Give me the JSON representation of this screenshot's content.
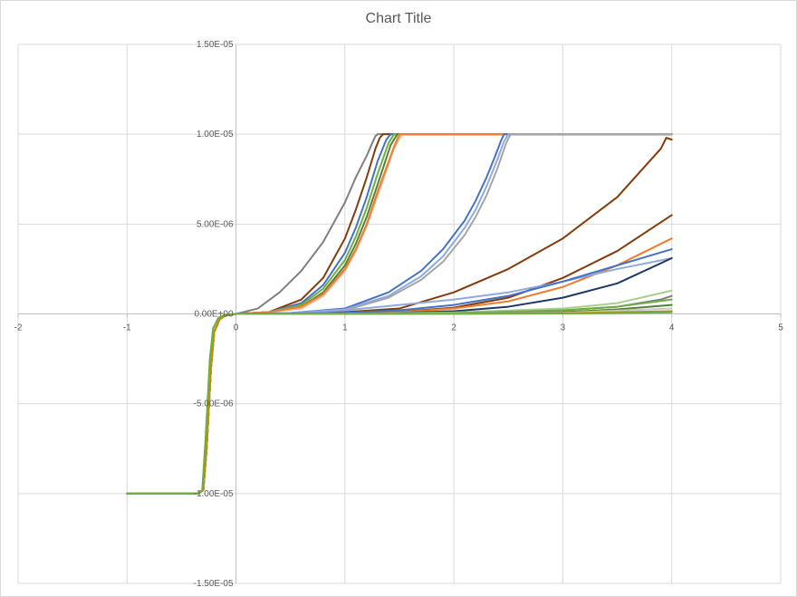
{
  "chart_data": {
    "type": "line",
    "title": "Chart Title",
    "xlabel": "",
    "ylabel": "",
    "xlim": [
      -2,
      5
    ],
    "ylim": [
      -1.5e-05,
      1.5e-05
    ],
    "x_ticks": [
      "-2",
      "-1",
      "0",
      "1",
      "2",
      "3",
      "4",
      "5"
    ],
    "y_ticks": [
      "-1.50E-05",
      "-1.00E-05",
      "-5.00E-06",
      "0.00E+00",
      "5.00E-06",
      "1.00E-05",
      "1.50E-05"
    ],
    "grid": true,
    "legend": "none",
    "series": [
      {
        "color": "#7f7f7f",
        "x": [
          -1,
          -0.35,
          -0.3,
          -0.27,
          -0.23,
          -0.2,
          -0.15,
          -0.1,
          0,
          0.2,
          0.4,
          0.6,
          0.8,
          1.0,
          1.1,
          1.2,
          1.25,
          1.28,
          1.3,
          4.0
        ],
        "y": [
          -1e-05,
          -1e-05,
          -9.8e-06,
          -7.5e-06,
          -3e-06,
          -1e-06,
          -3e-07,
          -1e-07,
          0,
          3e-07,
          1.2e-06,
          2.4e-06,
          4e-06,
          6.2e-06,
          7.6e-06,
          8.8e-06,
          9.5e-06,
          9.9e-06,
          1e-05,
          1e-05
        ]
      },
      {
        "color": "#843c0c",
        "x": [
          -1,
          -0.35,
          -0.3,
          -0.27,
          -0.23,
          -0.2,
          -0.15,
          -0.1,
          0,
          0.3,
          0.6,
          0.8,
          1.0,
          1.1,
          1.2,
          1.28,
          1.32,
          1.35,
          4.0
        ],
        "y": [
          -1e-05,
          -1e-05,
          -9.8e-06,
          -7.5e-06,
          -3e-06,
          -1e-06,
          -3e-07,
          -1e-07,
          0,
          1e-07,
          8e-07,
          2e-06,
          4.2e-06,
          5.8e-06,
          7.6e-06,
          9.2e-06,
          9.8e-06,
          1e-05,
          1e-05
        ]
      },
      {
        "color": "#4472c4",
        "x": [
          -1,
          -0.35,
          -0.3,
          -0.27,
          -0.23,
          -0.2,
          -0.15,
          -0.1,
          0,
          0.3,
          0.6,
          0.8,
          1.0,
          1.1,
          1.2,
          1.3,
          1.38,
          1.42,
          4.0
        ],
        "y": [
          -1e-05,
          -1e-05,
          -9.8e-06,
          -7.5e-06,
          -3e-06,
          -1e-06,
          -3e-07,
          -1e-07,
          0,
          1e-07,
          6e-07,
          1.6e-06,
          3.4e-06,
          4.8e-06,
          6.5e-06,
          8.5e-06,
          9.7e-06,
          1e-05,
          1e-05
        ]
      },
      {
        "color": "#70ad47",
        "x": [
          -1,
          -0.35,
          -0.3,
          -0.27,
          -0.23,
          -0.2,
          -0.15,
          -0.1,
          0,
          0.3,
          0.6,
          0.8,
          1.0,
          1.1,
          1.2,
          1.3,
          1.4,
          1.45,
          4.0
        ],
        "y": [
          -1e-05,
          -1e-05,
          -9.8e-06,
          -7.5e-06,
          -3e-06,
          -1e-06,
          -3e-07,
          -1e-07,
          0,
          1e-07,
          5e-07,
          1.4e-06,
          3e-06,
          4.3e-06,
          5.9e-06,
          7.8e-06,
          9.5e-06,
          1e-05,
          1e-05
        ]
      },
      {
        "color": "#548235",
        "x": [
          -1,
          -0.35,
          -0.3,
          -0.27,
          -0.23,
          -0.2,
          -0.15,
          -0.1,
          0,
          0.3,
          0.6,
          0.8,
          1.0,
          1.1,
          1.2,
          1.3,
          1.42,
          1.48,
          4.0
        ],
        "y": [
          -1e-05,
          -1e-05,
          -9.8e-06,
          -7.5e-06,
          -3e-06,
          -1e-06,
          -3e-07,
          -1e-07,
          0,
          1e-07,
          4e-07,
          1.2e-06,
          2.7e-06,
          3.9e-06,
          5.4e-06,
          7.2e-06,
          9.4e-06,
          1e-05,
          1e-05
        ]
      },
      {
        "color": "#f4b183",
        "x": [
          -1,
          -0.35,
          -0.3,
          -0.27,
          -0.23,
          -0.2,
          -0.15,
          -0.1,
          0,
          0.3,
          0.6,
          0.8,
          1.0,
          1.1,
          1.2,
          1.3,
          1.45,
          1.52,
          4.0
        ],
        "y": [
          -1e-05,
          -1e-05,
          -9.8e-06,
          -7.5e-06,
          -3e-06,
          -1e-06,
          -3e-07,
          -1e-07,
          0,
          1e-07,
          3e-07,
          1e-06,
          2.4e-06,
          3.5e-06,
          4.9e-06,
          6.6e-06,
          9.2e-06,
          1e-05,
          1e-05
        ]
      },
      {
        "color": "#ed7d31",
        "x": [
          -1,
          -0.35,
          -0.3,
          -0.27,
          -0.23,
          -0.2,
          -0.15,
          -0.1,
          0,
          0.3,
          0.6,
          0.8,
          1.0,
          1.1,
          1.2,
          1.3,
          1.45,
          1.5,
          4.0
        ],
        "y": [
          -1e-05,
          -1e-05,
          -9.8e-06,
          -7.5e-06,
          -3e-06,
          -1e-06,
          -3e-07,
          -1e-07,
          0,
          1e-07,
          4e-07,
          1.1e-06,
          2.5e-06,
          3.6e-06,
          5e-06,
          6.8e-06,
          9.3e-06,
          1e-05,
          1e-05
        ]
      },
      {
        "color": "#4472c4",
        "x": [
          -1,
          -0.35,
          -0.3,
          -0.27,
          -0.23,
          -0.2,
          -0.15,
          -0.1,
          0,
          0.5,
          1.0,
          1.4,
          1.7,
          1.9,
          2.1,
          2.2,
          2.3,
          2.38,
          2.43,
          2.46,
          4.0
        ],
        "y": [
          -1e-05,
          -1e-05,
          -9.8e-06,
          -7.5e-06,
          -3e-06,
          -1e-06,
          -3e-07,
          -1e-07,
          0,
          5e-08,
          3e-07,
          1.2e-06,
          2.4e-06,
          3.6e-06,
          5.2e-06,
          6.3e-06,
          7.6e-06,
          8.8e-06,
          9.6e-06,
          1e-05,
          1e-05
        ]
      },
      {
        "color": "#8faadc",
        "x": [
          -1,
          -0.35,
          -0.3,
          -0.27,
          -0.23,
          -0.2,
          -0.15,
          -0.1,
          0,
          0.5,
          1.0,
          1.4,
          1.7,
          1.9,
          2.1,
          2.2,
          2.3,
          2.4,
          2.46,
          2.5,
          4.0
        ],
        "y": [
          -1e-05,
          -1e-05,
          -9.8e-06,
          -7.5e-06,
          -3e-06,
          -1e-06,
          -3e-07,
          -1e-07,
          0,
          5e-08,
          2.5e-07,
          1e-06,
          2.1e-06,
          3.2e-06,
          4.8e-06,
          5.8e-06,
          7.1e-06,
          8.6e-06,
          9.6e-06,
          1e-05,
          1e-05
        ]
      },
      {
        "color": "#a5a5a5",
        "x": [
          -1,
          -0.35,
          -0.3,
          -0.27,
          -0.23,
          -0.2,
          -0.15,
          -0.1,
          0,
          0.5,
          1.0,
          1.4,
          1.7,
          1.9,
          2.1,
          2.2,
          2.3,
          2.4,
          2.48,
          2.52,
          4.0
        ],
        "y": [
          -1e-05,
          -1e-05,
          -9.8e-06,
          -7.5e-06,
          -3e-06,
          -1e-06,
          -3e-07,
          -1e-07,
          0,
          4e-08,
          2e-07,
          9e-07,
          1.9e-06,
          2.9e-06,
          4.4e-06,
          5.4e-06,
          6.6e-06,
          8.1e-06,
          9.5e-06,
          1e-05,
          1e-05
        ]
      },
      {
        "color": "#843c0c",
        "x": [
          -1,
          -0.35,
          -0.3,
          -0.27,
          -0.23,
          -0.2,
          -0.15,
          -0.1,
          0,
          0.5,
          1.0,
          1.5,
          2.0,
          2.5,
          3.0,
          3.5,
          3.9,
          3.95,
          4.0
        ],
        "y": [
          -1e-05,
          -1e-05,
          -9.8e-06,
          -7.5e-06,
          -3e-06,
          -1e-06,
          -3e-07,
          -1e-07,
          0,
          2e-08,
          1e-07,
          3e-07,
          1.2e-06,
          2.5e-06,
          4.2e-06,
          6.5e-06,
          9.2e-06,
          9.8e-06,
          9.7e-06
        ]
      },
      {
        "color": "#843c0c",
        "x": [
          -1,
          -0.35,
          -0.3,
          -0.27,
          -0.23,
          -0.2,
          -0.15,
          -0.1,
          0,
          0.5,
          1.0,
          1.5,
          2.0,
          2.5,
          3.0,
          3.5,
          4.0
        ],
        "y": [
          -1e-05,
          -1e-05,
          -9.8e-06,
          -7.5e-06,
          -3e-06,
          -1e-06,
          -3e-07,
          -1e-07,
          0,
          1e-08,
          4e-08,
          1.2e-07,
          3.5e-07,
          9e-07,
          2e-06,
          3.5e-06,
          5.5e-06
        ]
      },
      {
        "color": "#ed7d31",
        "x": [
          -1,
          -0.35,
          -0.3,
          -0.27,
          -0.23,
          -0.2,
          -0.15,
          -0.1,
          0,
          1.0,
          1.5,
          2.0,
          2.5,
          3.0,
          3.5,
          4.0
        ],
        "y": [
          -1e-05,
          -1e-05,
          -9.8e-06,
          -7.5e-06,
          -3e-06,
          -1e-06,
          -3e-07,
          -1e-07,
          0,
          3e-08,
          1e-07,
          3e-07,
          7e-07,
          1.5e-06,
          2.7e-06,
          4.2e-06
        ]
      },
      {
        "color": "#8faadc",
        "x": [
          -1,
          -0.35,
          -0.3,
          -0.27,
          -0.23,
          -0.2,
          -0.15,
          -0.1,
          0,
          0.5,
          1.0,
          1.5,
          2.0,
          2.5,
          3.0,
          3.5,
          4.0
        ],
        "y": [
          -1e-05,
          -1e-05,
          -9.8e-06,
          -7.5e-06,
          -3e-06,
          -1e-06,
          -3e-07,
          -1e-07,
          0,
          5e-08,
          2e-07,
          5e-07,
          8e-07,
          1.2e-06,
          1.8e-06,
          2.5e-06,
          3.1e-06
        ]
      },
      {
        "color": "#4472c4",
        "x": [
          -1,
          -0.35,
          -0.3,
          -0.27,
          -0.23,
          -0.2,
          -0.15,
          -0.1,
          0,
          1.0,
          1.5,
          2.0,
          2.5,
          3.0,
          3.5,
          4.0
        ],
        "y": [
          -1e-05,
          -1e-05,
          -9.8e-06,
          -7.5e-06,
          -3e-06,
          -1e-06,
          -3e-07,
          -1e-07,
          0,
          6e-08,
          2e-07,
          5e-07,
          1e-06,
          1.8e-06,
          2.7e-06,
          3.6e-06
        ]
      },
      {
        "color": "#1f3864",
        "x": [
          -1,
          -0.35,
          -0.3,
          -0.27,
          -0.23,
          -0.2,
          -0.15,
          -0.1,
          0,
          1.0,
          1.5,
          2.0,
          2.5,
          3.0,
          3.5,
          4.0
        ],
        "y": [
          -1e-05,
          -1e-05,
          -9.8e-06,
          -7.5e-06,
          -3e-06,
          -1e-06,
          -3e-07,
          -1e-07,
          0,
          2e-08,
          6e-08,
          1.5e-07,
          4e-07,
          9e-07,
          1.7e-06,
          3.1e-06
        ]
      },
      {
        "color": "#808080",
        "x": [
          -1,
          -0.35,
          -0.3,
          -0.27,
          -0.23,
          -0.2,
          -0.15,
          -0.1,
          0,
          1.0,
          2.0,
          3.0,
          3.5,
          3.9,
          4.0
        ],
        "y": [
          -1e-05,
          -1e-05,
          -9.8e-06,
          -7.5e-06,
          -3e-06,
          -1e-06,
          -3e-07,
          -1e-07,
          0,
          1e-08,
          5e-08,
          2e-07,
          4e-07,
          8e-07,
          1e-06
        ]
      },
      {
        "color": "#a9d18e",
        "x": [
          -1,
          -0.35,
          -0.3,
          -0.27,
          -0.23,
          -0.2,
          -0.15,
          -0.1,
          0,
          1.0,
          2.0,
          3.0,
          3.5,
          4.0
        ],
        "y": [
          -1e-05,
          -1e-05,
          -9.8e-06,
          -7.5e-06,
          -3e-06,
          -1e-06,
          -3e-07,
          -1e-07,
          0,
          2e-08,
          8e-08,
          3e-07,
          6e-07,
          1.3e-06
        ]
      },
      {
        "color": "#70ad47",
        "x": [
          -1,
          -0.35,
          -0.3,
          -0.27,
          -0.23,
          -0.2,
          -0.15,
          -0.1,
          0,
          1.0,
          2.0,
          3.0,
          3.5,
          4.0
        ],
        "y": [
          -1e-05,
          -1e-05,
          -9.8e-06,
          -7.5e-06,
          -3e-06,
          -1e-06,
          -3e-07,
          -1e-07,
          0,
          1e-08,
          5e-08,
          2e-07,
          4e-07,
          8e-07
        ]
      },
      {
        "color": "#548235",
        "x": [
          -1,
          -0.35,
          -0.3,
          -0.27,
          -0.23,
          -0.2,
          -0.15,
          -0.1,
          0,
          1.0,
          2.0,
          3.0,
          3.5,
          4.0
        ],
        "y": [
          -1e-05,
          -1e-05,
          -9.8e-06,
          -7.5e-06,
          -3e-06,
          -1e-06,
          -3e-07,
          -1e-07,
          0,
          1e-08,
          3e-08,
          1e-07,
          2.5e-07,
          5e-07
        ]
      },
      {
        "color": "#c9c9c9",
        "x": [
          -1,
          -0.35,
          -0.3,
          -0.27,
          -0.23,
          -0.2,
          -0.15,
          -0.1,
          0,
          1.0,
          2.0,
          3.0,
          4.0
        ],
        "y": [
          -1e-05,
          -1e-05,
          -9.8e-06,
          -7.5e-06,
          -3e-06,
          -1e-06,
          -3e-07,
          -1e-07,
          0,
          5e-09,
          2e-08,
          6e-08,
          3e-07
        ]
      },
      {
        "color": "#bf9000",
        "x": [
          -1,
          -0.35,
          -0.3,
          -0.27,
          -0.23,
          -0.2,
          -0.15,
          -0.1,
          0,
          1.0,
          2.0,
          3.0,
          4.0
        ],
        "y": [
          -1e-05,
          -1e-05,
          -9.8e-06,
          -7.5e-06,
          -3e-06,
          -1e-06,
          -3e-07,
          -1e-07,
          0,
          3e-09,
          1e-08,
          4e-08,
          1.5e-07
        ]
      },
      {
        "color": "#70ad47",
        "x": [
          -1,
          -0.35,
          -0.31,
          -0.28,
          -0.24,
          -0.21,
          -0.16,
          -0.1,
          0,
          1.0,
          2.0,
          3.0,
          4.0
        ],
        "y": [
          -1e-05,
          -1e-05,
          -9.8e-06,
          -7e-06,
          -2.5e-06,
          -8e-07,
          -2e-07,
          -5e-08,
          0,
          1e-09,
          5e-09,
          2e-08,
          8e-08
        ]
      }
    ]
  }
}
